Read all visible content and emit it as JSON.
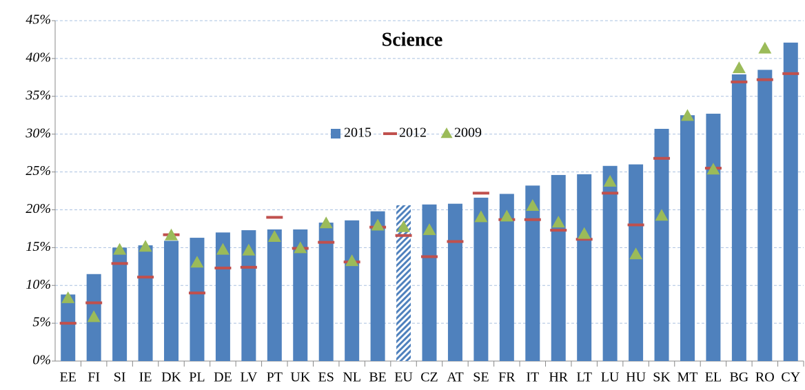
{
  "chart_data": {
    "type": "bar",
    "title": "Science",
    "categories": [
      "EE",
      "FI",
      "SI",
      "IE",
      "DK",
      "PL",
      "DE",
      "LV",
      "PT",
      "UK",
      "ES",
      "NL",
      "BE",
      "EU",
      "CZ",
      "AT",
      "SE",
      "FR",
      "IT",
      "HR",
      "LT",
      "LU",
      "HU",
      "SK",
      "MT",
      "EL",
      "BG",
      "RO",
      "CY"
    ],
    "series": [
      {
        "name": "2015",
        "marker": "bar",
        "color": "#4f81bd",
        "values": [
          8.8,
          11.5,
          15.0,
          15.3,
          15.9,
          16.3,
          17.0,
          17.3,
          17.4,
          17.4,
          18.3,
          18.6,
          19.8,
          20.6,
          20.7,
          20.8,
          21.6,
          22.1,
          23.2,
          24.6,
          24.7,
          25.8,
          26.0,
          30.7,
          32.5,
          32.7,
          37.9,
          38.5,
          42.1
        ]
      },
      {
        "name": "2012",
        "marker": "dash",
        "color": "#c0504d",
        "values": [
          5.0,
          7.7,
          12.9,
          11.1,
          16.7,
          9.0,
          12.3,
          12.4,
          19.0,
          14.9,
          15.7,
          13.1,
          17.7,
          16.6,
          13.8,
          15.8,
          22.2,
          18.7,
          18.7,
          17.3,
          16.1,
          22.2,
          18.0,
          26.8,
          null,
          25.5,
          36.9,
          37.2,
          38.0
        ]
      },
      {
        "name": "2009",
        "marker": "triangle",
        "color": "#9bbb59",
        "values": [
          8.3,
          5.8,
          14.7,
          15.1,
          16.6,
          13.0,
          14.7,
          14.6,
          16.4,
          14.9,
          18.2,
          13.2,
          17.9,
          17.7,
          17.3,
          null,
          19.0,
          19.1,
          20.5,
          18.3,
          16.8,
          23.7,
          14.1,
          19.2,
          32.4,
          25.3,
          38.7,
          41.3,
          null
        ]
      }
    ],
    "hatched_index": 13,
    "ylim": [
      0,
      45
    ],
    "yticks": [
      {
        "value": 0,
        "label": "0%"
      },
      {
        "value": 5,
        "label": "5%"
      },
      {
        "value": 10,
        "label": "10%"
      },
      {
        "value": 15,
        "label": "15%"
      },
      {
        "value": 20,
        "label": "20%"
      },
      {
        "value": 25,
        "label": "25%"
      },
      {
        "value": 30,
        "label": "30%"
      },
      {
        "value": 35,
        "label": "35%"
      },
      {
        "value": 40,
        "label": "40%"
      },
      {
        "value": 45,
        "label": "45%"
      }
    ],
    "grid": true
  }
}
